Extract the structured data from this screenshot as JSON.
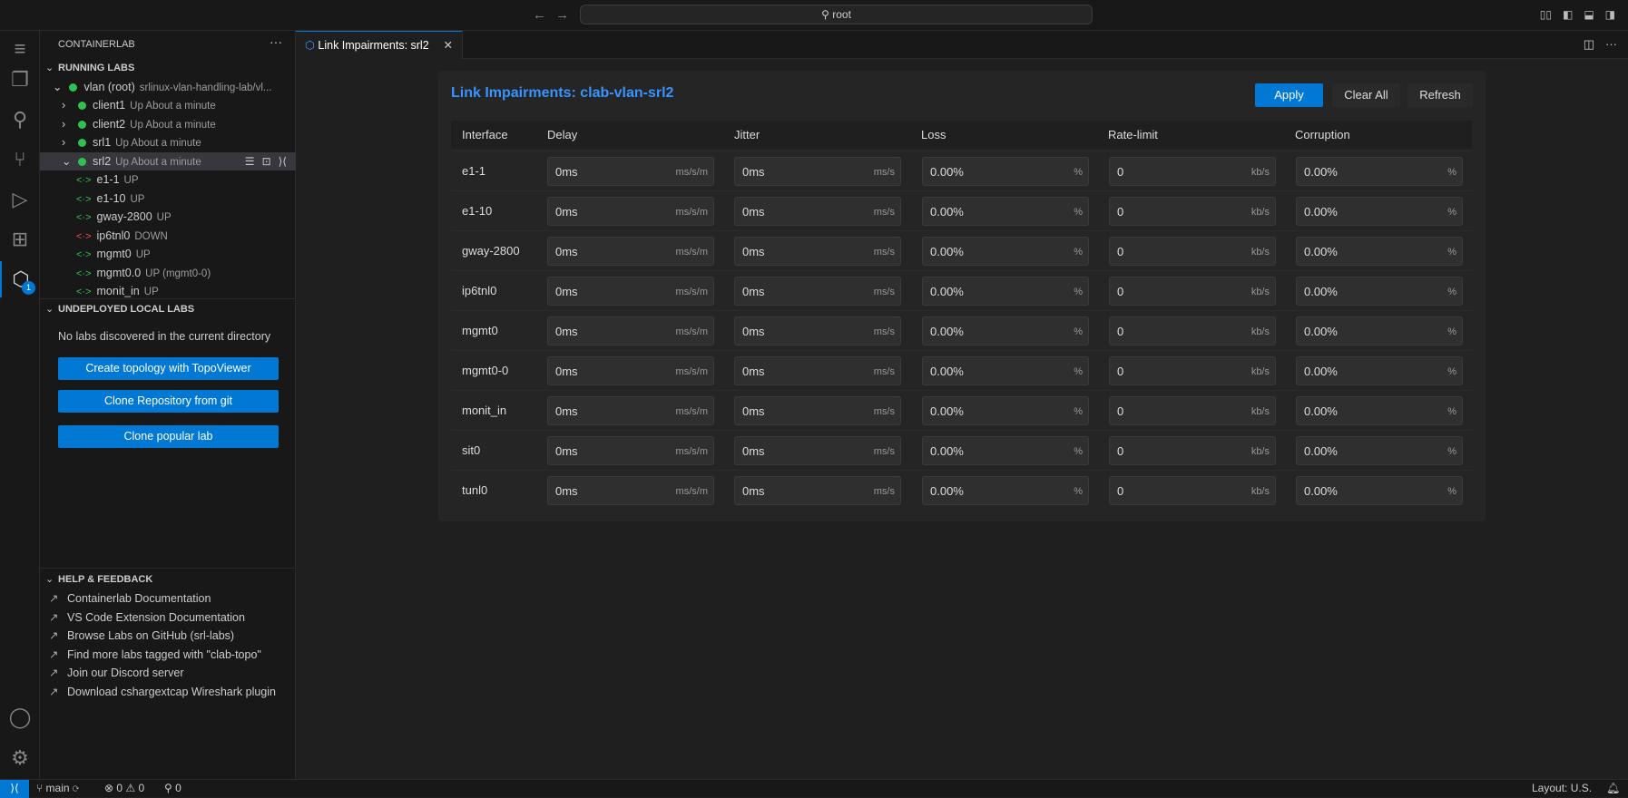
{
  "titlebar": {
    "search": "root",
    "back_icon": "arrow-left-icon",
    "forward_icon": "arrow-right-icon"
  },
  "sidebar": {
    "title": "CONTAINERLAB",
    "running_header": "RUNNING LABS",
    "lab": {
      "name": "vlan (root)",
      "path": "srlinux-vlan-handling-lab/vl...",
      "status_color": "#2fc250"
    },
    "nodes": [
      {
        "name": "client1",
        "status": "Up About a minute",
        "expanded": false
      },
      {
        "name": "client2",
        "status": "Up About a minute",
        "expanded": false
      },
      {
        "name": "srl1",
        "status": "Up About a minute",
        "expanded": false
      },
      {
        "name": "srl2",
        "status": "Up About a minute",
        "expanded": true
      }
    ],
    "interfaces": [
      {
        "name": "e1-1",
        "state": "UP"
      },
      {
        "name": "e1-10",
        "state": "UP"
      },
      {
        "name": "gway-2800",
        "state": "UP"
      },
      {
        "name": "ip6tnl0",
        "state": "DOWN"
      },
      {
        "name": "mgmt0",
        "state": "UP"
      },
      {
        "name": "mgmt0.0",
        "state": "UP (mgmt0-0)"
      },
      {
        "name": "monit_in",
        "state": "UP"
      }
    ],
    "undeployed_header": "UNDEPLOYED LOCAL LABS",
    "no_labs": "No labs discovered in the current directory",
    "buttons": [
      "Create topology with TopoViewer",
      "Clone Repository from git",
      "Clone popular lab"
    ],
    "help_header": "HELP & FEEDBACK",
    "help_links": [
      "Containerlab Documentation",
      "VS Code Extension Documentation",
      "Browse Labs on GitHub (srl-labs)",
      "Find more labs tagged with \"clab-topo\"",
      "Join our Discord server",
      "Download cshargextcap Wireshark plugin"
    ],
    "activity_badge": "1"
  },
  "tab": {
    "label": "Link Impairments: srl2"
  },
  "panel": {
    "title": "Link Impairments: clab-vlan-srl2",
    "buttons": {
      "apply": "Apply",
      "clear": "Clear All",
      "refresh": "Refresh"
    },
    "columns": [
      "Interface",
      "Delay",
      "Jitter",
      "Loss",
      "Rate-limit",
      "Corruption"
    ],
    "units": {
      "delay": "ms/s/m",
      "jitter": "ms/s",
      "loss": "%",
      "rate": "kb/s",
      "corruption": "%"
    },
    "rows": [
      {
        "iface": "e1-1",
        "delay": "0ms",
        "jitter": "0ms",
        "loss": "0.00%",
        "rate": "0",
        "corruption": "0.00%"
      },
      {
        "iface": "e1-10",
        "delay": "0ms",
        "jitter": "0ms",
        "loss": "0.00%",
        "rate": "0",
        "corruption": "0.00%"
      },
      {
        "iface": "gway-2800",
        "delay": "0ms",
        "jitter": "0ms",
        "loss": "0.00%",
        "rate": "0",
        "corruption": "0.00%"
      },
      {
        "iface": "ip6tnl0",
        "delay": "0ms",
        "jitter": "0ms",
        "loss": "0.00%",
        "rate": "0",
        "corruption": "0.00%"
      },
      {
        "iface": "mgmt0",
        "delay": "0ms",
        "jitter": "0ms",
        "loss": "0.00%",
        "rate": "0",
        "corruption": "0.00%"
      },
      {
        "iface": "mgmt0-0",
        "delay": "0ms",
        "jitter": "0ms",
        "loss": "0.00%",
        "rate": "0",
        "corruption": "0.00%"
      },
      {
        "iface": "monit_in",
        "delay": "0ms",
        "jitter": "0ms",
        "loss": "0.00%",
        "rate": "0",
        "corruption": "0.00%"
      },
      {
        "iface": "sit0",
        "delay": "0ms",
        "jitter": "0ms",
        "loss": "0.00%",
        "rate": "0",
        "corruption": "0.00%"
      },
      {
        "iface": "tunl0",
        "delay": "0ms",
        "jitter": "0ms",
        "loss": "0.00%",
        "rate": "0",
        "corruption": "0.00%"
      }
    ]
  },
  "statusbar": {
    "branch": "main",
    "errors": "0",
    "warnings": "0",
    "ports": "0",
    "layout": "Layout: U.S."
  },
  "colors": {
    "accent": "#0078d4",
    "title": "#3794ff",
    "up": "#2fc250",
    "down": "#f14c4c"
  }
}
